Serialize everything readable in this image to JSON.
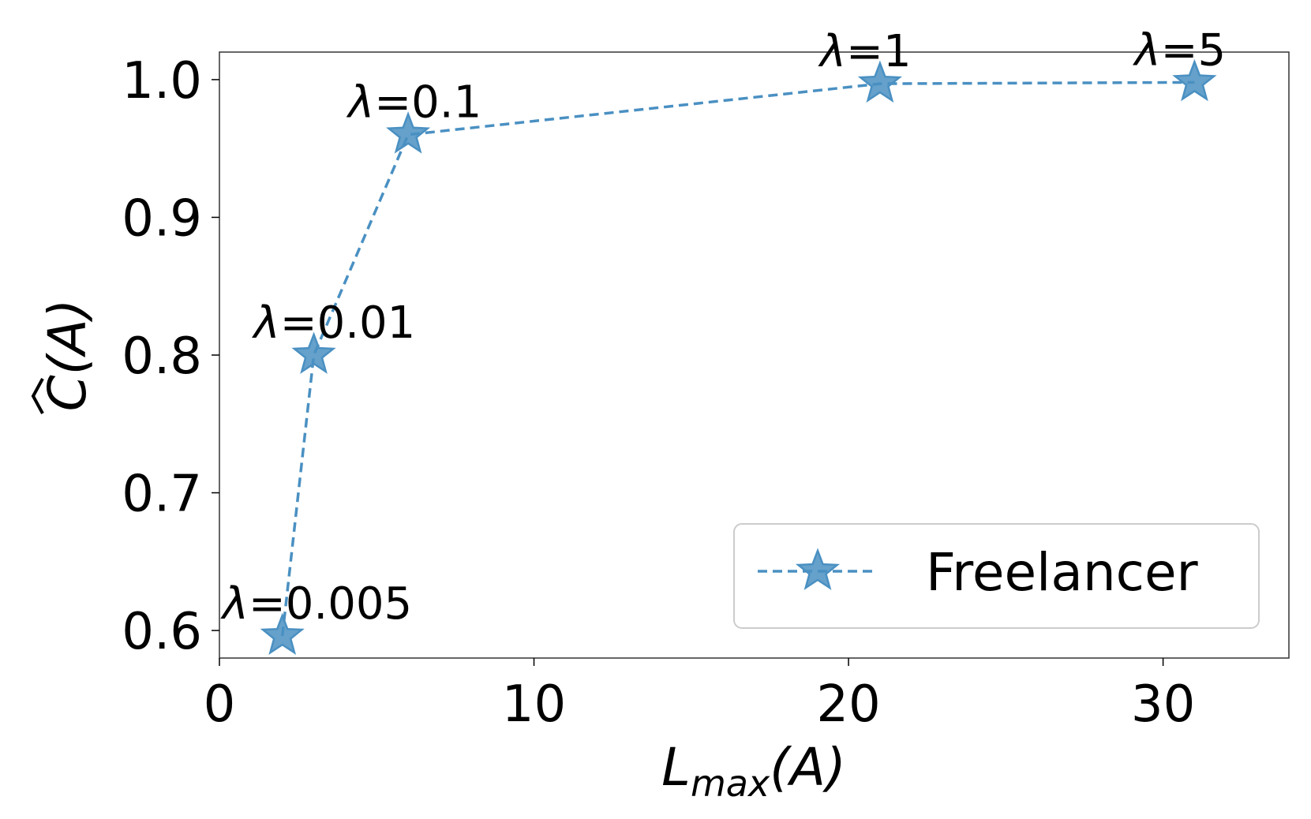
{
  "chart_data": {
    "type": "line",
    "title": "",
    "xlabel": "L_max(A)",
    "xlabel_main": "L",
    "xlabel_sub": "max",
    "xlabel_suffix": "(A)",
    "ylabel": "Ĉ(A)",
    "ylabel_main": "C",
    "ylabel_suffix": "(A)",
    "xlim": [
      0,
      34
    ],
    "ylim": [
      0.58,
      1.02
    ],
    "xticks": [
      0,
      10,
      20,
      30
    ],
    "xtick_labels": [
      "0",
      "10",
      "20",
      "30"
    ],
    "yticks": [
      0.6,
      0.7,
      0.8,
      0.9,
      1.0
    ],
    "ytick_labels": [
      "0.6",
      "0.7",
      "0.8",
      "0.9",
      "1.0"
    ],
    "grid": false,
    "legend_position": "lower-right",
    "series": [
      {
        "name": "Freelancer",
        "color": "#4a90c2",
        "linestyle": "dashed",
        "marker": "star",
        "x": [
          2,
          3,
          6,
          21,
          31
        ],
        "y": [
          0.596,
          0.8,
          0.96,
          0.997,
          0.998
        ],
        "annotations": [
          "λ=0.005",
          "λ=0.01",
          "λ=0.1",
          "λ=1",
          "λ=5"
        ]
      }
    ]
  }
}
